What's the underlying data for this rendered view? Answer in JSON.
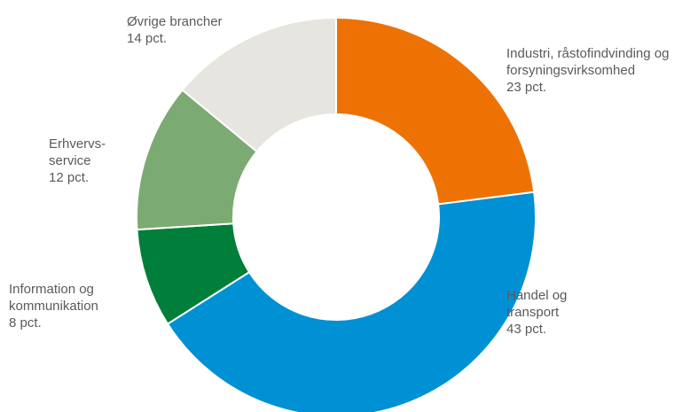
{
  "chart_data": {
    "type": "pie",
    "variant": "donut",
    "unit": "pct.",
    "start_at": "top",
    "direction": "clockwise",
    "slices": [
      {
        "key": "industri",
        "value": 23,
        "color": "#EE7203",
        "label_lines": [
          "Industri, råstofindvinding og",
          "forsyningsvirksomhed",
          "23 pct."
        ]
      },
      {
        "key": "handel",
        "value": 43,
        "color": "#0090D4",
        "label_lines": [
          "Handel og",
          "transport",
          "43 pct."
        ]
      },
      {
        "key": "information",
        "value": 8,
        "color": "#007F3A",
        "label_lines": [
          "Information og",
          "kommunikation",
          "8 pct."
        ]
      },
      {
        "key": "erhvervsservice",
        "value": 12,
        "color": "#7BAB72",
        "label_lines": [
          "Erhvervs-",
          "service",
          "12 pct."
        ]
      },
      {
        "key": "oevrige",
        "value": 14,
        "color": "#E6E5E0",
        "label_lines": [
          "Øvrige brancher",
          "14 pct."
        ]
      }
    ]
  }
}
